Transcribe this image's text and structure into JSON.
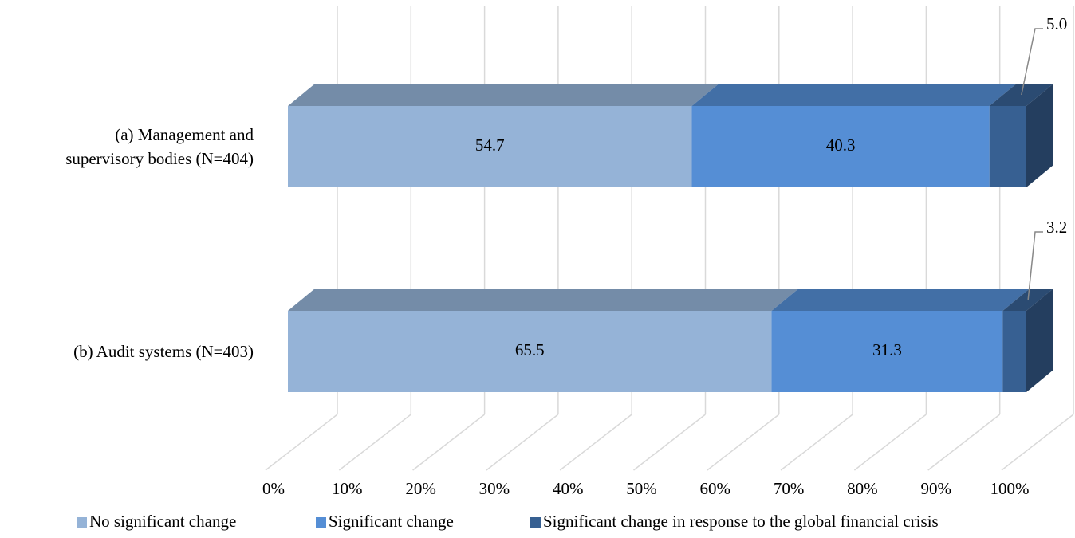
{
  "chart_data": {
    "type": "stacked-bar-3d",
    "orientation": "horizontal",
    "categories": [
      "(a) Management and supervisory bodies (N=404)",
      "(b) Audit systems (N=403)"
    ],
    "series": [
      {
        "name": "No significant change",
        "color": "#95b3d7",
        "values": [
          54.7,
          65.5
        ]
      },
      {
        "name": "Significant change",
        "color": "#558ed5",
        "values": [
          40.3,
          31.3
        ]
      },
      {
        "name": "Significant change in response to the global financial crisis",
        "color": "#376092",
        "values": [
          5.0,
          3.2
        ],
        "value_labels": [
          "5.0",
          "3.2"
        ]
      }
    ],
    "xlim": [
      0,
      100
    ],
    "xticks": [
      {
        "value": 0,
        "label": "0%"
      },
      {
        "value": 10,
        "label": "10%"
      },
      {
        "value": 20,
        "label": "20%"
      },
      {
        "value": 30,
        "label": "30%"
      },
      {
        "value": 40,
        "label": "40%"
      },
      {
        "value": 50,
        "label": "50%"
      },
      {
        "value": 60,
        "label": "60%"
      },
      {
        "value": 70,
        "label": "70%"
      },
      {
        "value": 80,
        "label": "80%"
      },
      {
        "value": 90,
        "label": "90%"
      },
      {
        "value": 100,
        "label": "100%"
      }
    ],
    "grid": true,
    "legend": "bottom"
  }
}
